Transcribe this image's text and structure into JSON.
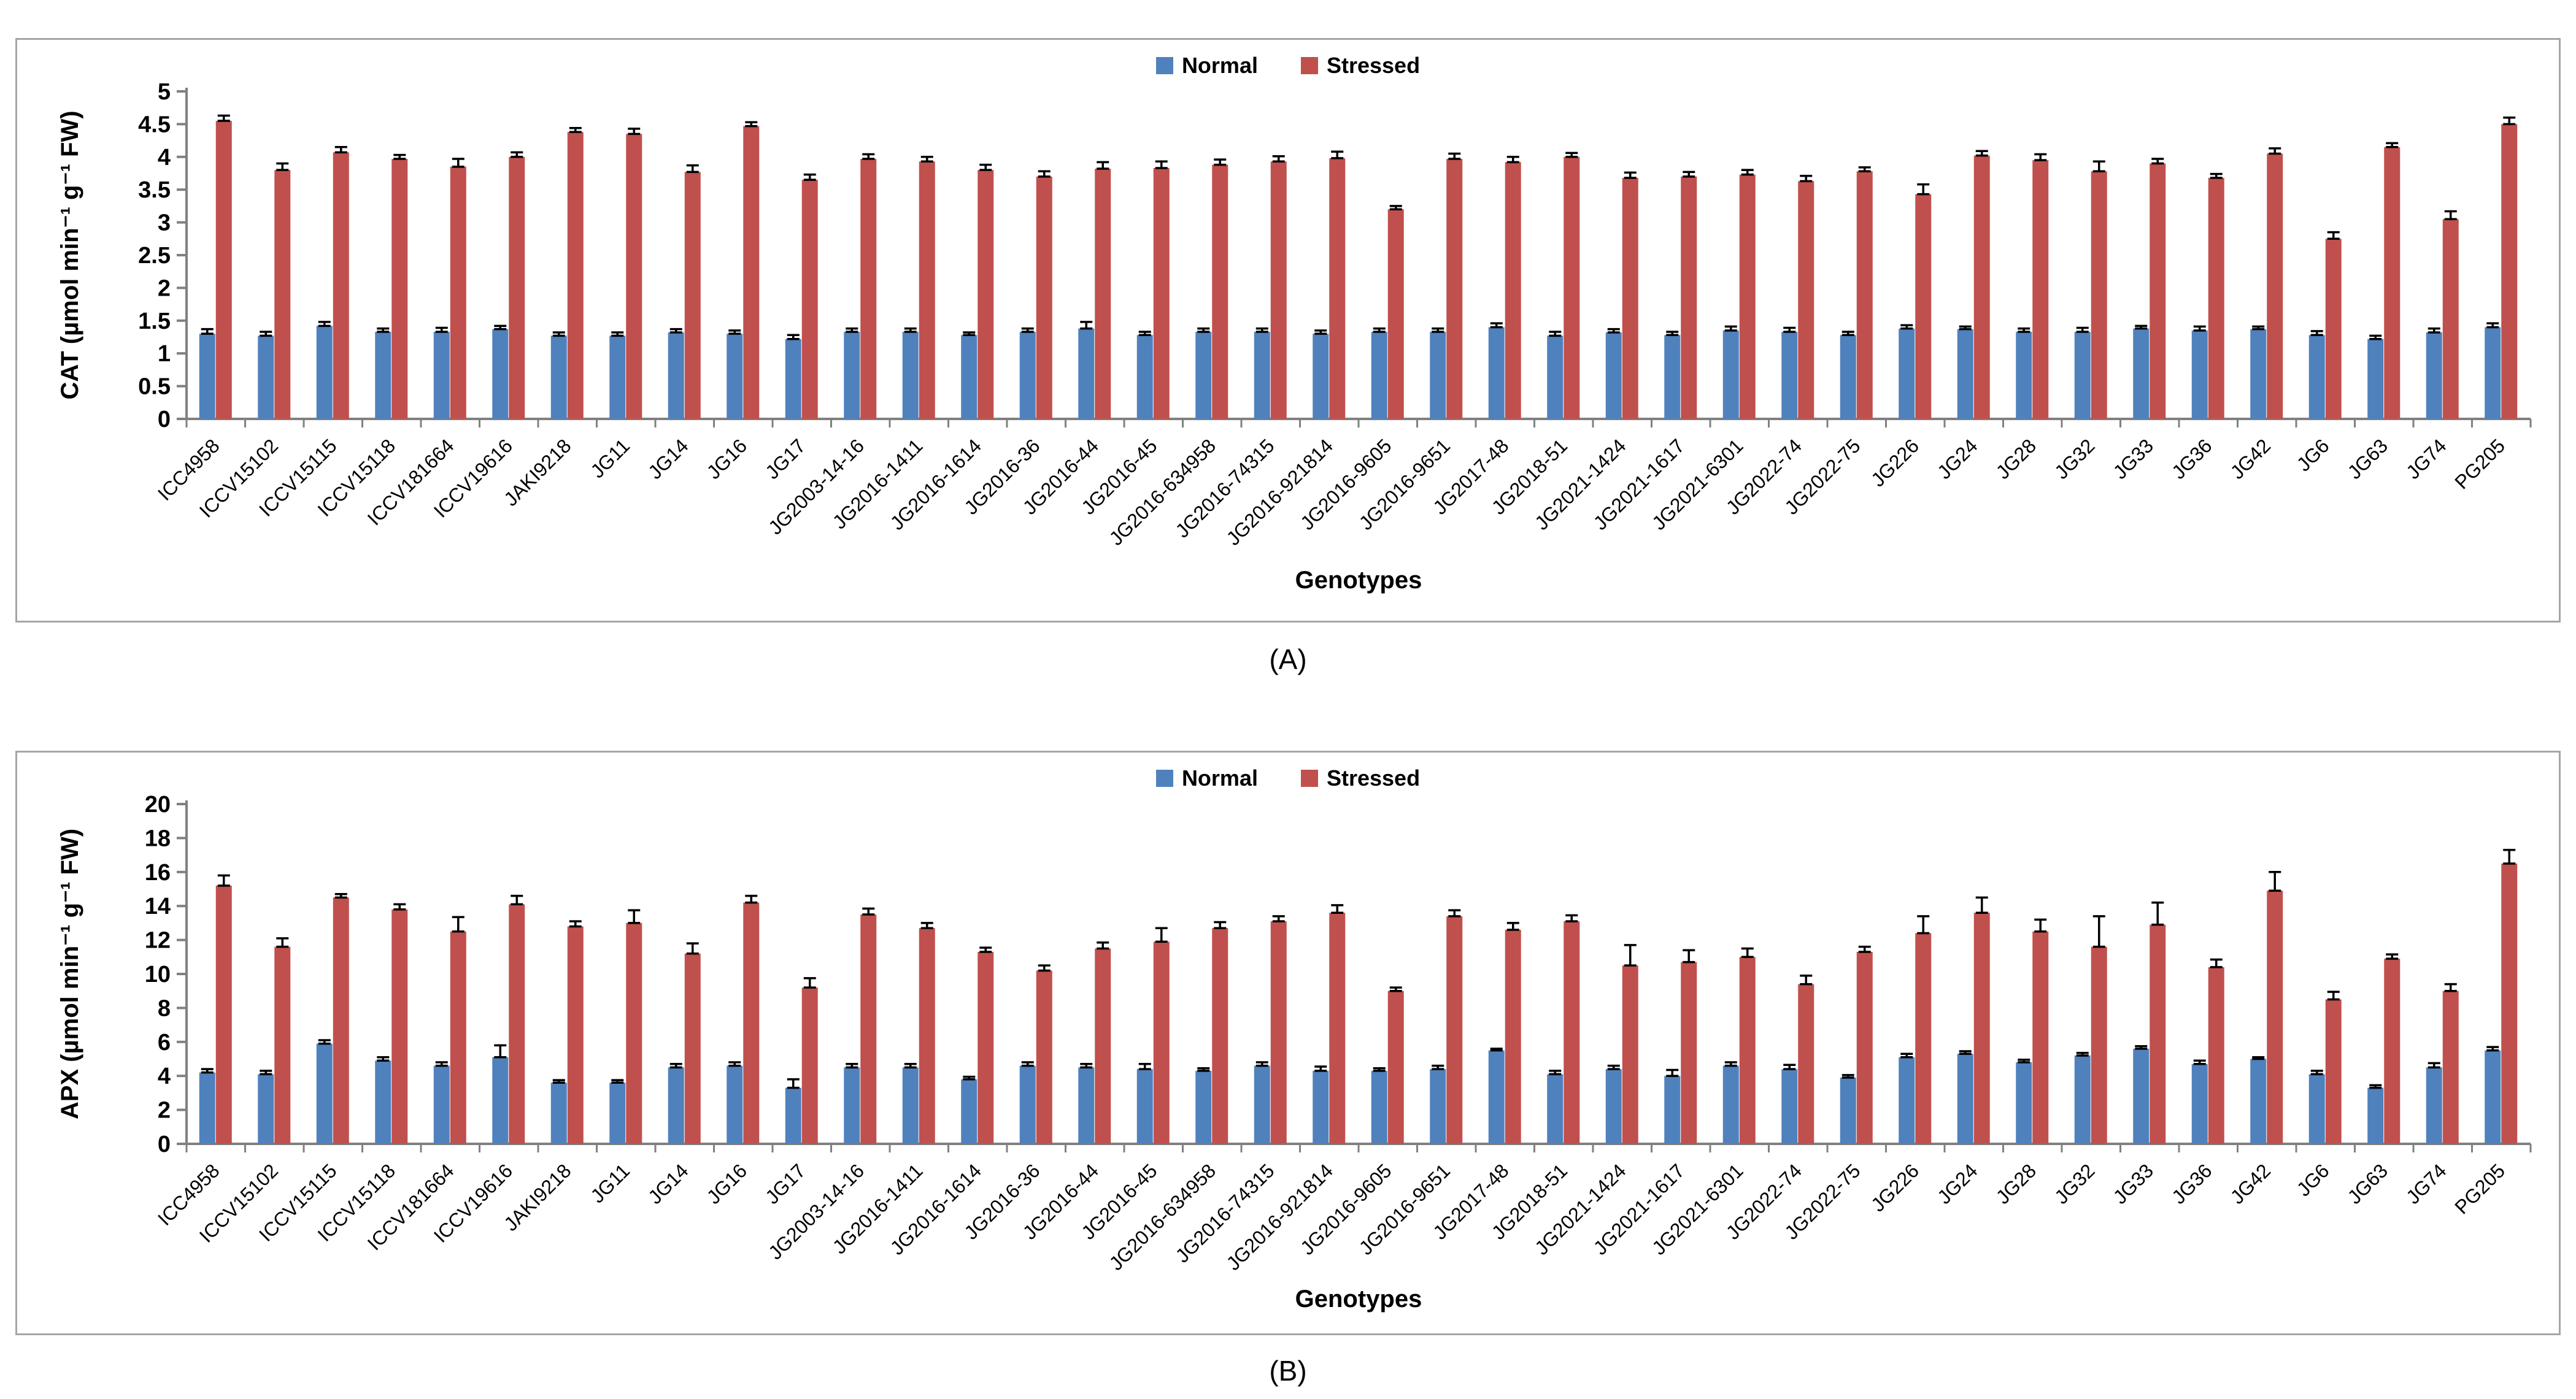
{
  "panels": [
    {
      "caption": "(A)"
    },
    {
      "caption": "(B)"
    }
  ],
  "colors": {
    "normal": "#4F81BD",
    "stressed": "#C0504D",
    "axis": "#808080",
    "error_bar": "#000000",
    "frame": "#A6A6A6"
  },
  "chart_data": [
    {
      "type": "bar",
      "title": "",
      "xlabel": "Genotypes",
      "ylabel": "CAT (µmol min⁻¹ g⁻¹ FW)",
      "ylim": [
        0,
        5
      ],
      "yticks": [
        0,
        0.5,
        1,
        1.5,
        2,
        2.5,
        3,
        3.5,
        4,
        4.5,
        5
      ],
      "grid": false,
      "legend_position": "top-center",
      "categories": [
        "ICC4958",
        "ICCV15102",
        "ICCV15115",
        "ICCV15118",
        "ICCV181664",
        "ICCV19616",
        "JAKI9218",
        "JG11",
        "JG14",
        "JG16",
        "JG17",
        "JG2003-14-16",
        "JG2016-1411",
        "JG2016-1614",
        "JG2016-36",
        "JG2016-44",
        "JG2016-45",
        "JG2016-634958",
        "JG2016-74315",
        "JG2016-921814",
        "JG2016-9605",
        "JG2016-9651",
        "JG2017-48",
        "JG2018-51",
        "JG2021-1424",
        "JG2021-1617",
        "JG2021-6301",
        "JG2022-74",
        "JG2022-75",
        "JG226",
        "JG24",
        "JG28",
        "JG32",
        "JG33",
        "JG36",
        "JG42",
        "JG6",
        "JG63",
        "JG74",
        "PG205"
      ],
      "series": [
        {
          "name": "Normal",
          "color": "#4F81BD",
          "values": [
            1.3,
            1.27,
            1.42,
            1.33,
            1.33,
            1.37,
            1.27,
            1.27,
            1.32,
            1.3,
            1.22,
            1.33,
            1.33,
            1.28,
            1.33,
            1.38,
            1.28,
            1.33,
            1.33,
            1.3,
            1.33,
            1.33,
            1.4,
            1.27,
            1.32,
            1.28,
            1.35,
            1.33,
            1.28,
            1.38,
            1.37,
            1.33,
            1.33,
            1.38,
            1.35,
            1.37,
            1.28,
            1.22,
            1.32,
            1.4
          ],
          "errors": [
            0.07,
            0.06,
            0.06,
            0.05,
            0.06,
            0.05,
            0.05,
            0.05,
            0.05,
            0.05,
            0.06,
            0.05,
            0.05,
            0.04,
            0.05,
            0.1,
            0.05,
            0.05,
            0.05,
            0.05,
            0.05,
            0.05,
            0.06,
            0.06,
            0.05,
            0.05,
            0.06,
            0.06,
            0.05,
            0.05,
            0.04,
            0.05,
            0.06,
            0.04,
            0.06,
            0.04,
            0.06,
            0.05,
            0.06,
            0.06
          ]
        },
        {
          "name": "Stressed",
          "color": "#C0504D",
          "values": [
            4.55,
            3.8,
            4.07,
            3.97,
            3.85,
            4.0,
            4.38,
            4.35,
            3.77,
            4.47,
            3.65,
            3.97,
            3.93,
            3.8,
            3.7,
            3.82,
            3.83,
            3.88,
            3.93,
            3.98,
            3.2,
            3.97,
            3.92,
            4.0,
            3.68,
            3.7,
            3.73,
            3.63,
            3.78,
            3.43,
            4.02,
            3.95,
            3.78,
            3.9,
            3.68,
            4.05,
            2.75,
            4.15,
            3.05,
            4.5
          ],
          "errors": [
            0.08,
            0.1,
            0.08,
            0.06,
            0.12,
            0.07,
            0.06,
            0.08,
            0.1,
            0.06,
            0.08,
            0.07,
            0.07,
            0.08,
            0.08,
            0.1,
            0.1,
            0.08,
            0.08,
            0.1,
            0.05,
            0.08,
            0.08,
            0.06,
            0.08,
            0.07,
            0.07,
            0.08,
            0.06,
            0.15,
            0.07,
            0.09,
            0.15,
            0.07,
            0.06,
            0.08,
            0.1,
            0.06,
            0.12,
            0.1
          ]
        }
      ]
    },
    {
      "type": "bar",
      "title": "",
      "xlabel": "Genotypes",
      "ylabel": "APX (µmol min⁻¹ g⁻¹ FW)",
      "ylim": [
        0,
        20
      ],
      "yticks": [
        0,
        2,
        4,
        6,
        8,
        10,
        12,
        14,
        16,
        18,
        20
      ],
      "grid": false,
      "legend_position": "top-center",
      "categories": [
        "ICC4958",
        "ICCV15102",
        "ICCV15115",
        "ICCV15118",
        "ICCV181664",
        "ICCV19616",
        "JAKI9218",
        "JG11",
        "JG14",
        "JG16",
        "JG17",
        "JG2003-14-16",
        "JG2016-1411",
        "JG2016-1614",
        "JG2016-36",
        "JG2016-44",
        "JG2016-45",
        "JG2016-634958",
        "JG2016-74315",
        "JG2016-921814",
        "JG2016-9605",
        "JG2016-9651",
        "JG2017-48",
        "JG2018-51",
        "JG2021-1424",
        "JG2021-1617",
        "JG2021-6301",
        "JG2022-74",
        "JG2022-75",
        "JG226",
        "JG24",
        "JG28",
        "JG32",
        "JG33",
        "JG36",
        "JG42",
        "JG6",
        "JG63",
        "JG74",
        "PG205"
      ],
      "series": [
        {
          "name": "Normal",
          "color": "#4F81BD",
          "values": [
            4.2,
            4.1,
            5.9,
            4.9,
            4.6,
            5.1,
            3.6,
            3.6,
            4.5,
            4.6,
            3.3,
            4.5,
            4.5,
            3.8,
            4.6,
            4.5,
            4.4,
            4.3,
            4.6,
            4.3,
            4.3,
            4.4,
            5.5,
            4.1,
            4.4,
            4.0,
            4.6,
            4.4,
            3.9,
            5.1,
            5.3,
            4.8,
            5.2,
            5.6,
            4.7,
            5.0,
            4.1,
            3.3,
            4.5,
            5.5
          ],
          "errors": [
            0.2,
            0.2,
            0.2,
            0.2,
            0.2,
            0.7,
            0.15,
            0.15,
            0.2,
            0.2,
            0.5,
            0.2,
            0.2,
            0.15,
            0.2,
            0.2,
            0.3,
            0.15,
            0.2,
            0.25,
            0.15,
            0.2,
            0.1,
            0.2,
            0.2,
            0.35,
            0.2,
            0.25,
            0.15,
            0.2,
            0.15,
            0.15,
            0.15,
            0.15,
            0.2,
            0.1,
            0.2,
            0.15,
            0.25,
            0.2
          ]
        },
        {
          "name": "Stressed",
          "color": "#C0504D",
          "values": [
            15.2,
            11.6,
            14.5,
            13.8,
            12.5,
            14.1,
            12.8,
            13.0,
            11.2,
            14.2,
            9.2,
            13.5,
            12.7,
            11.3,
            10.2,
            11.5,
            11.9,
            12.7,
            13.1,
            13.6,
            9.0,
            13.4,
            12.6,
            13.1,
            10.5,
            10.7,
            11.0,
            9.4,
            11.3,
            12.4,
            13.6,
            12.5,
            11.6,
            12.9,
            10.4,
            14.9,
            8.5,
            10.9,
            9.0,
            16.5
          ],
          "errors": [
            0.6,
            0.5,
            0.2,
            0.3,
            0.85,
            0.5,
            0.3,
            0.75,
            0.6,
            0.4,
            0.55,
            0.35,
            0.3,
            0.25,
            0.3,
            0.35,
            0.8,
            0.35,
            0.3,
            0.45,
            0.2,
            0.35,
            0.4,
            0.35,
            1.2,
            0.7,
            0.5,
            0.5,
            0.3,
            1.0,
            0.9,
            0.7,
            1.8,
            1.3,
            0.45,
            1.1,
            0.45,
            0.25,
            0.4,
            0.8
          ]
        }
      ]
    }
  ]
}
